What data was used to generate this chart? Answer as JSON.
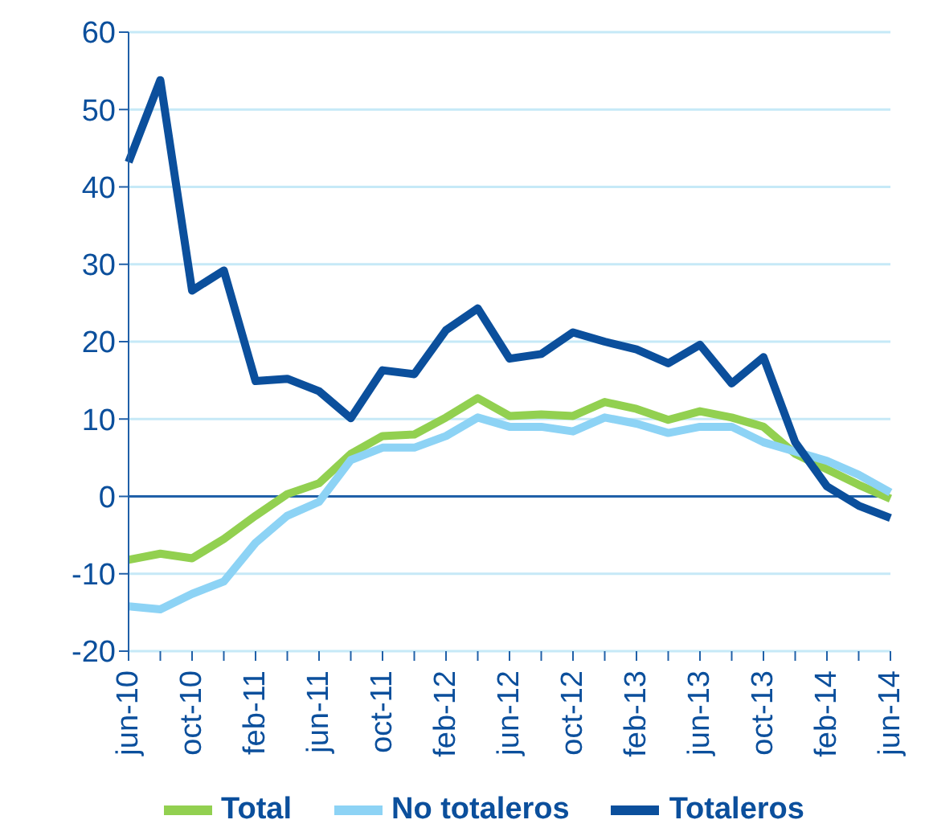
{
  "chart_data": {
    "type": "line",
    "categories": [
      "jun-10",
      null,
      "oct-10",
      null,
      "feb-11",
      null,
      "jun-11",
      null,
      "oct-11",
      null,
      "feb-12",
      null,
      "jun-12",
      null,
      "oct-12",
      null,
      "feb-13",
      null,
      "jun-13",
      null,
      "oct-13",
      null,
      "feb-14",
      null,
      "jun-14"
    ],
    "series": [
      {
        "name": "Total",
        "color": "#92d050",
        "values": [
          -8.2,
          -7.4,
          -8,
          -5.5,
          -2.5,
          0.3,
          1.7,
          5.5,
          7.8,
          8,
          10.2,
          12.7,
          10.4,
          10.6,
          10.4,
          12.2,
          11.3,
          9.9,
          11,
          10.2,
          9,
          5.5,
          3.5,
          1.5,
          -0.3
        ]
      },
      {
        "name": "No totaleros",
        "color": "#8dd3f5",
        "values": [
          -14.2,
          -14.6,
          -12.6,
          -11,
          -6,
          -2.5,
          -0.7,
          4.7,
          6.3,
          6.3,
          7.8,
          10.2,
          9,
          9,
          8.4,
          10.2,
          9.4,
          8.2,
          9,
          9,
          7,
          5.8,
          4.6,
          2.8,
          0.5
        ]
      },
      {
        "name": "Totaleros",
        "color": "#0b4f9c",
        "values": [
          43.2,
          53.8,
          26.6,
          29.2,
          14.9,
          15.2,
          13.6,
          10.1,
          16.3,
          15.8,
          21.5,
          24.3,
          17.8,
          18.4,
          21.2,
          20,
          19,
          17.2,
          19.6,
          14.6,
          18,
          7,
          1.3,
          -1.2,
          -2.8
        ]
      }
    ],
    "ref_lines": [
      {
        "axis": "y",
        "value": 0,
        "color": "#2060a8"
      }
    ],
    "ylim": [
      -20,
      60
    ],
    "yticks": [
      -20,
      -10,
      0,
      10,
      20,
      30,
      40,
      50,
      60
    ],
    "grid": "y",
    "legend": "bottom",
    "marker": "none",
    "line_style": "solid"
  }
}
